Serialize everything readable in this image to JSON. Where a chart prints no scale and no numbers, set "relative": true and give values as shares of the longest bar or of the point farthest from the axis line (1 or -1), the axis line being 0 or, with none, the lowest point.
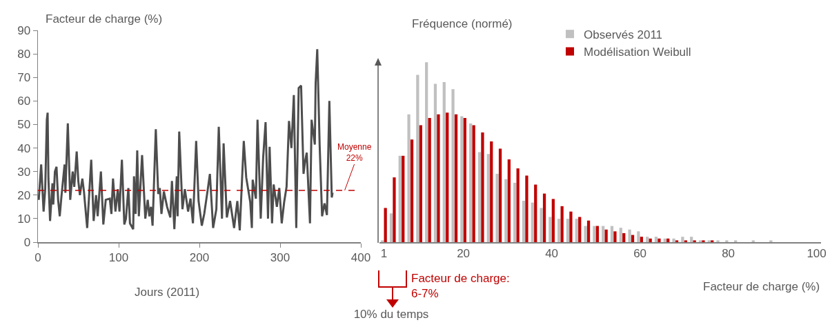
{
  "chart_data": [
    {
      "type": "line",
      "ylabel": "Facteur de charge (%)",
      "xlabel": "Jours (2011)",
      "xlim": [
        0,
        400
      ],
      "xticks": [
        0,
        100,
        200,
        300,
        400
      ],
      "ylim": [
        0,
        90
      ],
      "yticks": [
        0,
        10,
        20,
        30,
        40,
        50,
        60,
        70,
        80,
        90
      ],
      "grid": false,
      "legend": false,
      "marker": "none",
      "line_style": "solid",
      "ref_lines": [
        {
          "axis": "y",
          "value": 22,
          "label": "Moyenne\n22%",
          "color": "#c00000",
          "line_style": "dashed"
        }
      ],
      "series": [
        {
          "color": "#4d4d4d",
          "x": [
            0,
            1,
            4,
            7,
            9,
            11,
            12,
            13,
            15,
            18,
            19,
            21,
            23,
            25,
            27,
            29,
            33,
            34,
            37,
            40,
            43,
            45,
            48,
            50,
            52,
            55,
            57,
            61,
            66,
            69,
            72,
            74,
            78,
            81,
            84,
            89,
            91,
            93,
            96,
            99,
            101,
            104,
            107,
            109,
            112,
            114,
            118,
            119,
            121,
            123,
            125,
            129,
            133,
            136,
            138,
            140,
            142,
            146,
            149,
            151,
            153,
            156,
            160,
            164,
            166,
            169,
            172,
            173,
            175,
            179,
            182,
            186,
            189,
            192,
            196,
            199,
            203,
            206,
            210,
            213,
            217,
            221,
            224,
            228,
            230,
            234,
            238,
            243,
            247,
            250,
            255,
            258,
            263,
            265,
            266,
            270,
            272,
            276,
            279,
            282,
            285,
            287,
            290,
            292,
            296,
            299,
            302,
            305,
            308,
            311,
            314,
            317,
            320,
            323,
            326,
            329,
            331,
            333,
            337,
            339,
            343,
            344,
            346,
            349,
            352,
            355,
            358,
            361,
            364,
            365
          ],
          "values": [
            20,
            18,
            33,
            13,
            22.5,
            52,
            55,
            27,
            9,
            25,
            16,
            30,
            32,
            18,
            11,
            19,
            33,
            21,
            50.5,
            18,
            30,
            23.5,
            38.5,
            26,
            20,
            27,
            21.5,
            6,
            35,
            9,
            20,
            11,
            30,
            7.5,
            18,
            18.5,
            12,
            27,
            13,
            22.5,
            13,
            35,
            7.5,
            10,
            23,
            8,
            5.5,
            28,
            12,
            39,
            11,
            37,
            10,
            18,
            11,
            15,
            7,
            48,
            20.5,
            23,
            12,
            21.5,
            15,
            10.5,
            26,
            5.5,
            28,
            11,
            47,
            14,
            22.5,
            13,
            18.5,
            8,
            43,
            17.5,
            7,
            12,
            21.5,
            29,
            6,
            14,
            49,
            10,
            42,
            10.5,
            17.5,
            6,
            17.5,
            5,
            43,
            27.5,
            17,
            6,
            26.5,
            18.5,
            52,
            10,
            36,
            51,
            10,
            40.5,
            8,
            24.5,
            15,
            23,
            8,
            17,
            23.5,
            51.5,
            40,
            62.5,
            6,
            65.5,
            66.5,
            29,
            34.5,
            38,
            8,
            52,
            41.5,
            67.5,
            82,
            41,
            11,
            16.5,
            11.5,
            60,
            19,
            21
          ]
        }
      ]
    },
    {
      "type": "bar",
      "ylabel": "Fréquence (normé)",
      "xlabel": "Facteur de charge (%)",
      "relative": true,
      "legend": "top right",
      "grid": false,
      "categories": [
        "1",
        null,
        null,
        null,
        null,
        null,
        null,
        null,
        null,
        "20",
        null,
        null,
        null,
        null,
        null,
        null,
        null,
        null,
        null,
        "40",
        null,
        null,
        null,
        null,
        null,
        null,
        null,
        null,
        null,
        "60",
        null,
        null,
        null,
        null,
        null,
        null,
        null,
        null,
        null,
        "80",
        null,
        null,
        null,
        null,
        null,
        null,
        null,
        null,
        null,
        "100"
      ],
      "annotations": [
        "Facteur de charge:\n6-7%",
        "10% du temps"
      ],
      "series": [
        {
          "name": "Observés 2011",
          "color": "#c0c0c0",
          "values": [
            0.01,
            0.16,
            0.48,
            0.71,
            0.93,
            1,
            0.88,
            0.89,
            0.85,
            0.7,
            0.66,
            0.5,
            0.49,
            0.38,
            0.35,
            0.33,
            0.23,
            0.22,
            0.19,
            0.14,
            0.13,
            0.13,
            0.13,
            0.09,
            0.09,
            0.09,
            0.09,
            0.08,
            0.07,
            0.06,
            0.03,
            0.03,
            0.02,
            0.02,
            0.03,
            0.03,
            0.01,
            0.01,
            0.01,
            0.01,
            0.01,
            0,
            0.01,
            0,
            0.01,
            0,
            0,
            0,
            0,
            0
          ]
        },
        {
          "name": "Modélisation Weibull",
          "color": "#c00000",
          "values": [
            0.19,
            0.36,
            0.48,
            0.57,
            0.65,
            0.69,
            0.71,
            0.72,
            0.71,
            0.69,
            0.65,
            0.61,
            0.56,
            0.52,
            0.46,
            0.41,
            0.37,
            0.32,
            0.27,
            0.24,
            0.2,
            0.17,
            0.14,
            0.12,
            0.09,
            0.07,
            0.06,
            0.05,
            0.04,
            0.03,
            0.02,
            0.02,
            0.02,
            0.01,
            0.01,
            0.01,
            0.01,
            0.01,
            0,
            0,
            0,
            0,
            0,
            0,
            0,
            0,
            0,
            0,
            0,
            0
          ]
        }
      ]
    }
  ]
}
